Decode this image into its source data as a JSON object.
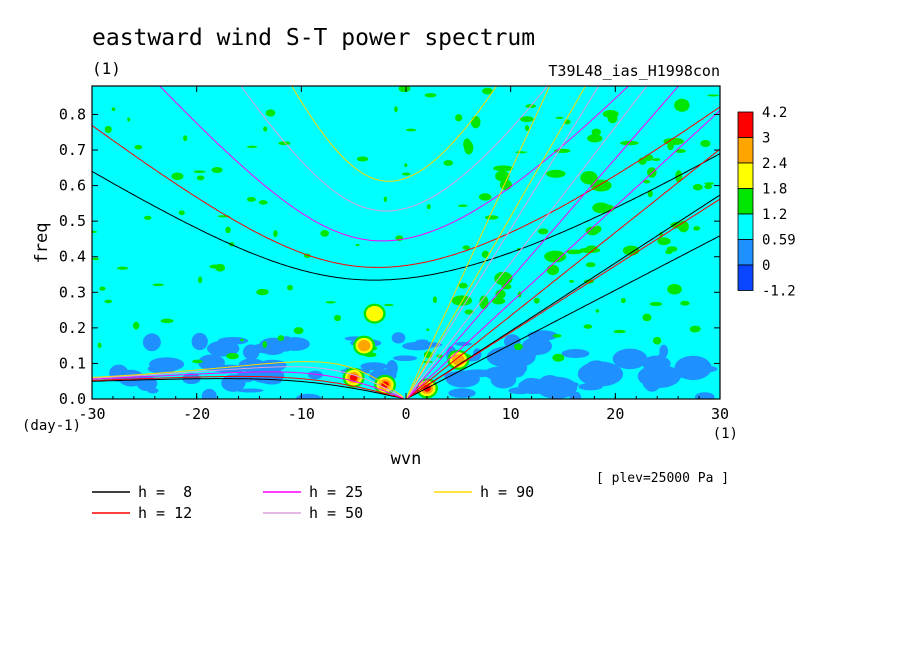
{
  "chart_data": {
    "type": "heatmap",
    "title": "eastward wind S-T power spectrum",
    "subtitle": "(1)",
    "run_label": "T39L48_ias_H1998con",
    "xlabel": "wvn",
    "x_unit": "(1)",
    "ylabel": "freq",
    "y_unit": "(day-1)",
    "xlim": [
      -30,
      30
    ],
    "ylim": [
      0,
      0.88
    ],
    "x_ticks": [
      -30,
      -20,
      -10,
      0,
      10,
      20,
      30
    ],
    "y_ticks": [
      0.0,
      0.1,
      0.2,
      0.3,
      0.4,
      0.5,
      0.6,
      0.7,
      0.8
    ],
    "plev_note": "[ plev=25000 Pa ]",
    "background_level": "0.59 to 1.2",
    "colorbar": {
      "labels": [
        "4.2",
        "3",
        "2.4",
        "1.8",
        "1.2",
        "0.59",
        "0",
        "-1.2"
      ],
      "colors": [
        "#ff0000",
        "#ffa500",
        "#ffff00",
        "#00e600",
        "#00ffff",
        "#1e90ff",
        "#0a46ff"
      ]
    },
    "hot_spots": [
      {
        "wvn": -5,
        "freq": 0.06,
        "level": "4.2"
      },
      {
        "wvn": -4,
        "freq": 0.15,
        "level": "3"
      },
      {
        "wvn": -2,
        "freq": 0.04,
        "level": "4.2"
      },
      {
        "wvn": 5,
        "freq": 0.11,
        "level": "3"
      },
      {
        "wvn": 2,
        "freq": 0.03,
        "level": "4.2"
      },
      {
        "wvn": -3,
        "freq": 0.24,
        "level": "2.4"
      }
    ],
    "legend": [
      {
        "label": "h =  8",
        "color": "#000000"
      },
      {
        "label": "h = 12",
        "color": "#ff0000"
      },
      {
        "label": "h = 25",
        "color": "#ff00ff"
      },
      {
        "label": "h = 50",
        "color": "#dda0dd"
      },
      {
        "label": "h = 90",
        "color": "#ffd700"
      }
    ],
    "dispersion_curves": {
      "equivalent_depths": [
        8,
        12,
        25,
        50,
        90
      ],
      "families": [
        "eastward inertio-gravity",
        "westward inertio-gravity",
        "Rossby",
        "Kelvin",
        "mixed Rossby-gravity"
      ]
    }
  }
}
